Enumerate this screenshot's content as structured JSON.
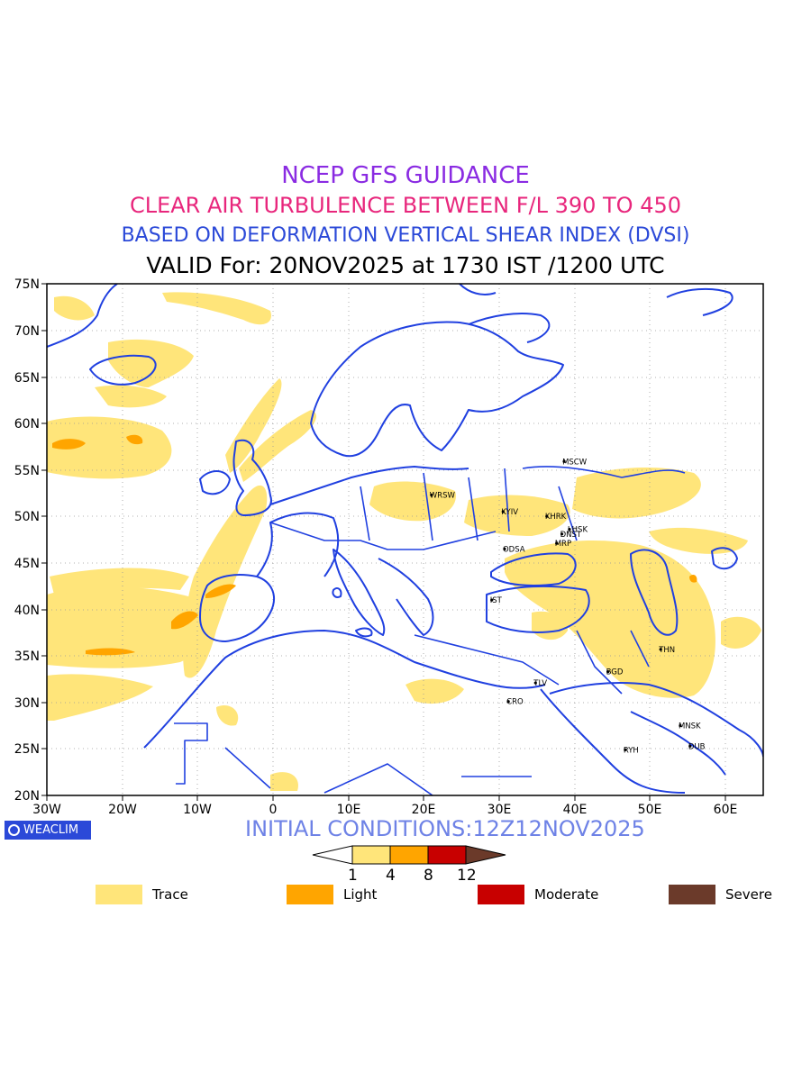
{
  "titles": {
    "line1": "NCEP GFS GUIDANCE",
    "line2": "CLEAR AIR TURBULENCE BETWEEN F/L 390 TO 450",
    "line3": "BASED ON DEFORMATION VERTICAL SHEAR INDEX (DVSI)",
    "line4": "VALID For: 20NOV2025 at 1730 IST /1200 UTC"
  },
  "map": {
    "lon_range": [
      -30,
      65
    ],
    "lat_range": [
      20,
      75
    ],
    "lat_labels": [
      "75N",
      "70N",
      "65N",
      "60N",
      "55N",
      "50N",
      "45N",
      "40N",
      "35N",
      "30N",
      "25N",
      "20N"
    ],
    "lon_labels": [
      "30W",
      "20W",
      "10W",
      "0",
      "10E",
      "20E",
      "30E",
      "40E",
      "50E",
      "60E"
    ],
    "cities": [
      {
        "name": "MSCW",
        "lon": 38.6,
        "lat": 55.9
      },
      {
        "name": "WRSW",
        "lon": 21.0,
        "lat": 52.3
      },
      {
        "name": "KYIV",
        "lon": 30.5,
        "lat": 50.5
      },
      {
        "name": "KHRK",
        "lon": 36.3,
        "lat": 50.0
      },
      {
        "name": "LHSK",
        "lon": 39.3,
        "lat": 48.6
      },
      {
        "name": "DNST",
        "lon": 38.3,
        "lat": 48.1
      },
      {
        "name": "MRP",
        "lon": 37.6,
        "lat": 47.1
      },
      {
        "name": "ODSA",
        "lon": 30.7,
        "lat": 46.5
      },
      {
        "name": "IST",
        "lon": 29.0,
        "lat": 41.0
      },
      {
        "name": "THN",
        "lon": 51.4,
        "lat": 35.7
      },
      {
        "name": "BGD",
        "lon": 44.4,
        "lat": 33.3
      },
      {
        "name": "TLV",
        "lon": 34.8,
        "lat": 32.1
      },
      {
        "name": "CRO",
        "lon": 31.2,
        "lat": 30.1
      },
      {
        "name": "MNSK",
        "lon": 54.0,
        "lat": 27.5
      },
      {
        "name": "RYH",
        "lon": 46.7,
        "lat": 24.9
      },
      {
        "name": "DUB",
        "lon": 55.3,
        "lat": 25.3
      }
    ]
  },
  "initial_conditions": "INITIAL CONDITIONS:12Z12NOV2025",
  "brand": "WEACLIM",
  "colorbar": {
    "ticks": [
      "1",
      "4",
      "8",
      "12"
    ],
    "colors": [
      "#ffe57a",
      "#ffa500",
      "#c80000",
      "#6b3a2a"
    ]
  },
  "legend": [
    {
      "label": "Trace",
      "color": "#ffe57a"
    },
    {
      "label": "Light",
      "color": "#ffa500"
    },
    {
      "label": "Moderate",
      "color": "#c80000"
    },
    {
      "label": "Severe",
      "color": "#6b3a2a"
    }
  ],
  "colors": {
    "coast": "#2040e0",
    "trace": "#ffe57a",
    "light": "#ffa500",
    "grid": "#999999"
  }
}
